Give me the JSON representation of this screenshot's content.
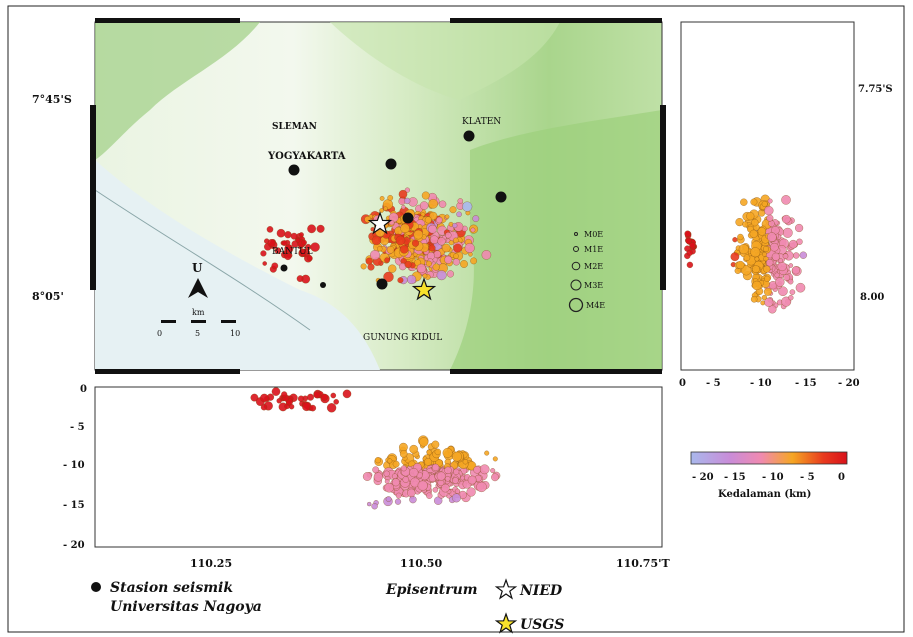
{
  "map": {
    "lat_labels": [
      "7°45'S",
      "8°05'"
    ],
    "cities": [
      {
        "name": "SLEMAN"
      },
      {
        "name": "YOGYAKARTA"
      },
      {
        "name": "KLATEN"
      },
      {
        "name": "BANTUL"
      },
      {
        "name": "GUNUNG KIDUL"
      }
    ],
    "north_label": "U",
    "scale_unit": "km",
    "scale_ticks": [
      "0",
      "5",
      "10"
    ],
    "magnitude_legend": [
      "M0E",
      "M1E",
      "M2E",
      "M3E",
      "M4E"
    ]
  },
  "depth_east": {
    "lat_labels": [
      "7.75'S",
      "8.00"
    ],
    "depth_ticks": [
      "0",
      "- 5",
      "- 10",
      "- 15",
      "- 20"
    ]
  },
  "depth_south": {
    "depth_ticks": [
      "0",
      "- 5",
      "- 10",
      "- 15",
      "- 20"
    ],
    "lon_ticks": [
      "110.25",
      "110.50",
      "110.75'T"
    ]
  },
  "colorbar": {
    "ticks": [
      "- 20",
      "- 15",
      "- 10",
      "- 5",
      "0"
    ],
    "label": "Kedalaman (km)",
    "colors": [
      "#a9b8ec",
      "#c98cd8",
      "#f08ab0",
      "#f5a623",
      "#e83a1e",
      "#d9121b"
    ]
  },
  "legend": {
    "station_line1": "Stasion seismik",
    "station_line2": "Universitas Nagoya",
    "epicenter_label": "Episentrum",
    "nied_label": "NIED",
    "usgs_label": "USGS"
  }
}
